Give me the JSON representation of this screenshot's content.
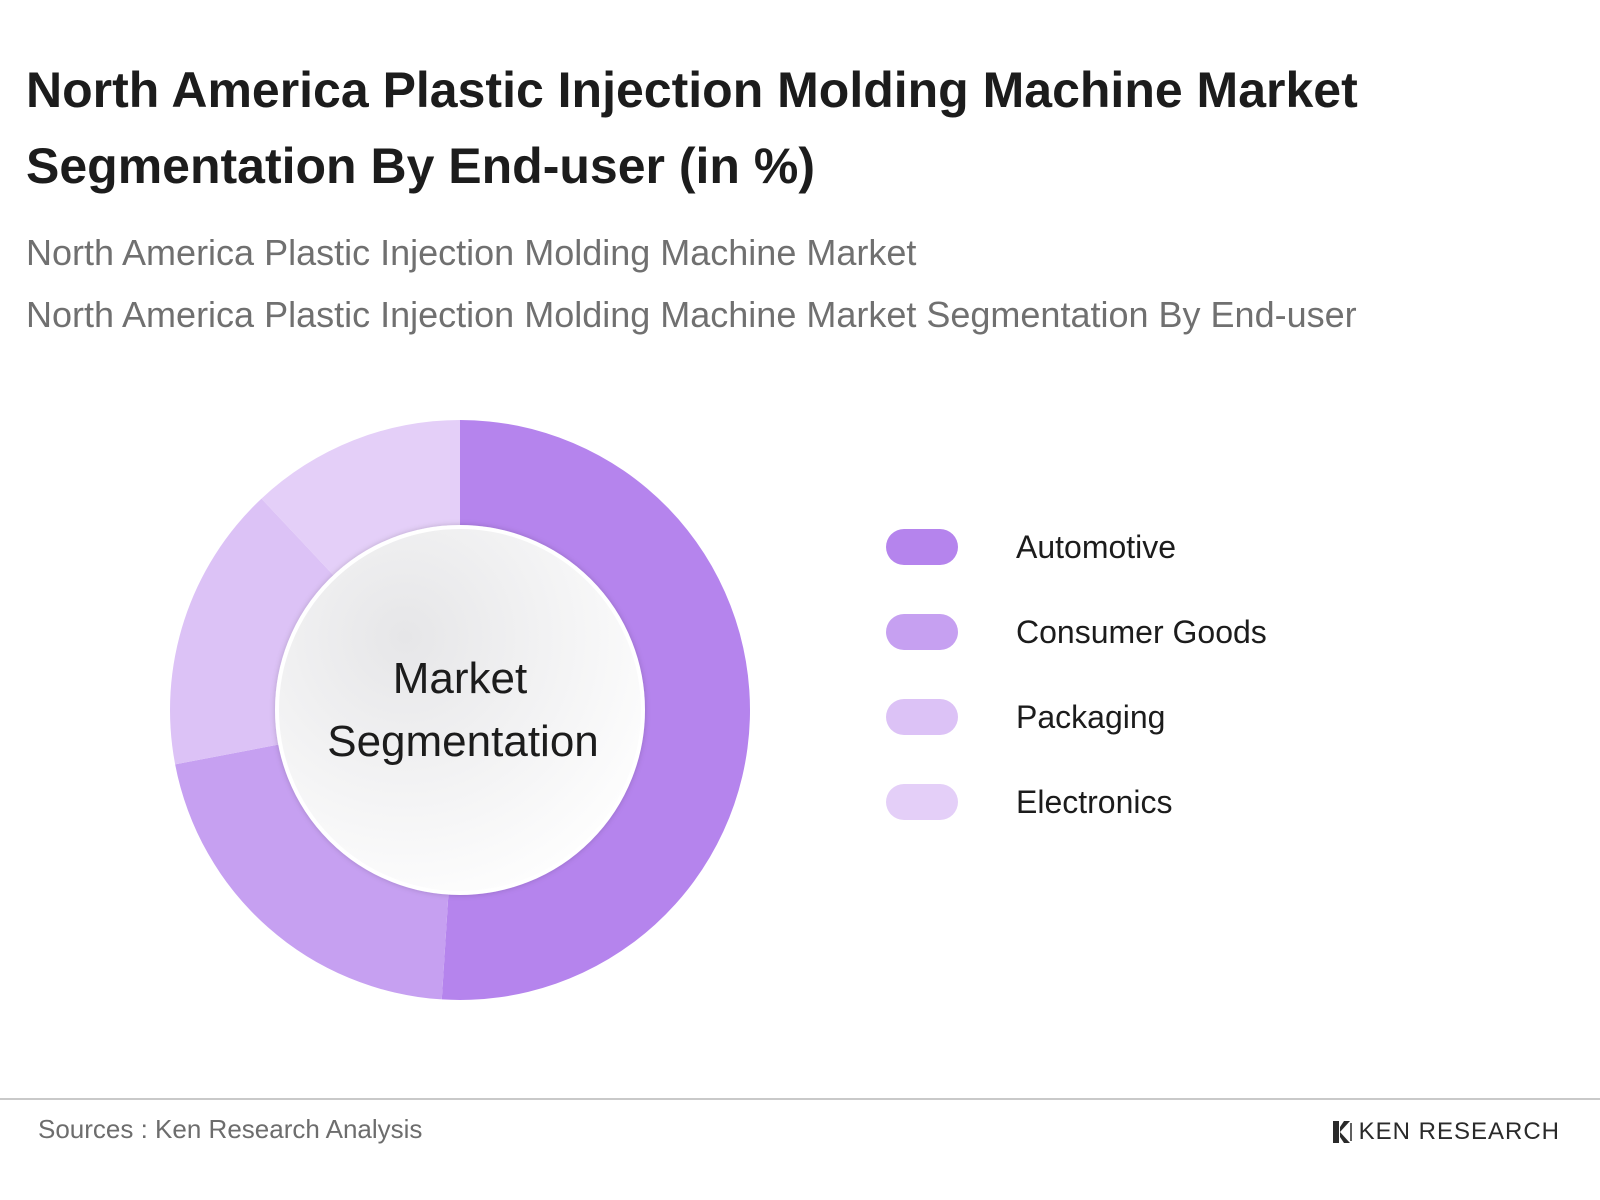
{
  "title": "North America Plastic Injection Molding Machine Market Segmentation By End-user (in %)",
  "subtitle_1": "North America Plastic Injection Molding Machine Market",
  "subtitle_2": "North America Plastic Injection Molding Machine Market Segmentation By End-user",
  "center_label_line1": "Market",
  "center_label_line2": "Segmentation",
  "source": "Sources : Ken Research Analysis",
  "brand": "KEN RESEARCH",
  "chart_data": {
    "type": "pie",
    "donut": true,
    "legend_position": "right",
    "categories": [
      "Automotive",
      "Consumer Goods",
      "Packaging",
      "Electronics"
    ],
    "values": [
      51,
      21,
      16,
      12
    ],
    "colors": [
      "#b584ed",
      "#c6a0f1",
      "#dcc2f6",
      "#e4cff8"
    ]
  }
}
